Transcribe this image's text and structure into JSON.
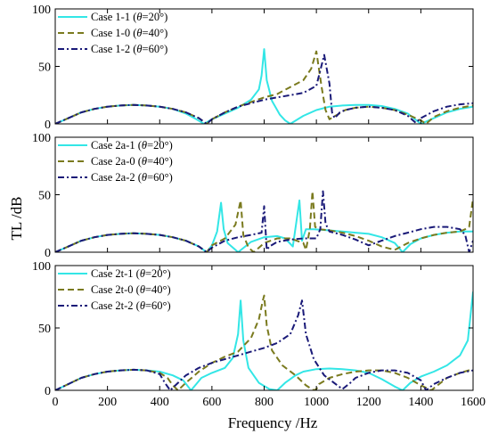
{
  "figure": {
    "ylabel": "TL /dB",
    "xlabel": "Frequency /Hz"
  },
  "colors": {
    "case_20": "#33E6E6",
    "case_40": "#7A7A1E",
    "case_60": "#1A1A78",
    "axis": "#000000"
  },
  "chart_data": [
    {
      "type": "line",
      "xlim": [
        0,
        1600
      ],
      "ylim": [
        0,
        100
      ],
      "x_ticks": [
        "0",
        "200",
        "400",
        "600",
        "800",
        "1000",
        "1200",
        "1400",
        "1600"
      ],
      "y_ticks": [
        "0",
        "50",
        "100"
      ],
      "legend_position": "top-left",
      "series": [
        {
          "name": "Case 1-1 (θ=20°)",
          "name_pre": "Case 1-1 (",
          "name_theta": "θ",
          "name_post": "=20°)",
          "style": "solid",
          "color": "#33E6E6",
          "x": [
            0,
            50,
            100,
            150,
            200,
            250,
            300,
            350,
            400,
            450,
            500,
            540,
            570,
            600,
            650,
            700,
            750,
            780,
            790,
            800,
            810,
            830,
            860,
            880,
            900,
            950,
            1000,
            1050,
            1100,
            1150,
            1200,
            1250,
            1300,
            1350,
            1400,
            1450,
            1500,
            1550,
            1600
          ],
          "y": [
            0,
            5,
            10,
            13,
            15,
            16,
            16.5,
            16,
            15,
            13,
            9,
            4,
            0,
            4,
            9,
            14,
            21,
            30,
            42,
            65,
            38,
            20,
            8,
            3,
            0,
            7,
            12,
            15,
            16,
            16.5,
            16.5,
            15.5,
            13,
            9,
            0,
            5,
            10,
            13,
            15
          ]
        },
        {
          "name": "Case 1-0 (θ=40°)",
          "name_pre": "Case 1-0 (",
          "name_theta": "θ",
          "name_post": "=40°)",
          "style": "dash",
          "color": "#7A7A1E",
          "x": [
            0,
            50,
            100,
            150,
            200,
            250,
            300,
            350,
            400,
            450,
            500,
            550,
            580,
            600,
            650,
            700,
            750,
            800,
            850,
            900,
            950,
            980,
            1000,
            1020,
            1035,
            1050,
            1080,
            1110,
            1150,
            1200,
            1250,
            1300,
            1350,
            1400,
            1420,
            1450,
            1500,
            1550,
            1600
          ],
          "y": [
            0,
            5,
            10,
            13,
            15,
            16,
            16.5,
            16,
            15,
            13,
            10,
            5,
            0,
            4,
            10,
            15,
            19,
            23,
            26,
            32,
            38,
            48,
            63,
            32,
            12,
            4,
            8,
            12,
            14,
            15,
            14,
            12,
            8,
            3,
            0,
            6,
            11,
            14,
            16
          ]
        },
        {
          "name": "Case 1-2 (θ=60°)",
          "name_pre": "Case 1-2 (",
          "name_theta": "θ",
          "name_post": "=60°)",
          "style": "dashdot",
          "color": "#1A1A78",
          "x": [
            0,
            50,
            100,
            150,
            200,
            250,
            300,
            350,
            400,
            450,
            500,
            550,
            580,
            600,
            650,
            700,
            750,
            800,
            850,
            900,
            950,
            1000,
            1030,
            1050,
            1060,
            1070,
            1090,
            1110,
            1150,
            1200,
            1250,
            1300,
            1350,
            1380,
            1400,
            1450,
            1500,
            1550,
            1600
          ],
          "y": [
            0,
            5,
            10,
            13,
            15,
            16,
            16.5,
            16,
            15,
            13,
            10,
            5,
            0,
            4,
            10,
            15,
            18,
            21,
            23,
            25,
            27,
            33,
            60,
            35,
            10,
            5,
            10,
            12,
            14,
            15,
            14,
            12,
            7,
            1,
            5,
            11,
            15,
            17,
            18
          ]
        }
      ]
    },
    {
      "type": "line",
      "xlim": [
        0,
        1600
      ],
      "ylim": [
        0,
        100
      ],
      "x_ticks": [
        "0",
        "200",
        "400",
        "600",
        "800",
        "1000",
        "1200",
        "1400",
        "1600"
      ],
      "y_ticks": [
        "0",
        "50",
        "100"
      ],
      "legend_position": "top-left",
      "series": [
        {
          "name": "Case 2a-1 (θ=20°)",
          "name_pre": "Case 2a-1 (",
          "name_theta": "θ",
          "name_post": "=20°)",
          "style": "solid",
          "color": "#33E6E6",
          "x": [
            0,
            50,
            100,
            150,
            200,
            250,
            300,
            350,
            400,
            450,
            500,
            550,
            580,
            600,
            620,
            635,
            645,
            660,
            690,
            700,
            750,
            800,
            850,
            880,
            910,
            935,
            945,
            960,
            990,
            1050,
            1100,
            1150,
            1200,
            1250,
            1300,
            1330,
            1360,
            1400,
            1450,
            1500,
            1550,
            1600
          ],
          "y": [
            0,
            5,
            10,
            13,
            15,
            16,
            16.5,
            16,
            15,
            13,
            10,
            5,
            0,
            6,
            18,
            43,
            20,
            8,
            2,
            0,
            9,
            13,
            14,
            12,
            5,
            45,
            10,
            20,
            20,
            19,
            18,
            17,
            16,
            13,
            8,
            0,
            7,
            12,
            15,
            17,
            18,
            18
          ]
        },
        {
          "name": "Case 2a-0 (θ=40°)",
          "name_pre": "Case 2a-0 (",
          "name_theta": "θ",
          "name_post": "=40°)",
          "style": "dash",
          "color": "#7A7A1E",
          "x": [
            0,
            50,
            100,
            150,
            200,
            250,
            300,
            350,
            400,
            450,
            500,
            550,
            580,
            600,
            650,
            690,
            710,
            720,
            740,
            760,
            800,
            850,
            900,
            950,
            960,
            975,
            985,
            995,
            1010,
            1050,
            1100,
            1150,
            1200,
            1250,
            1300,
            1350,
            1400,
            1450,
            1500,
            1550,
            1570,
            1585,
            1600
          ],
          "y": [
            0,
            5,
            10,
            13,
            15,
            16,
            16.5,
            16,
            15,
            13,
            10,
            5,
            0,
            6,
            12,
            24,
            45,
            15,
            4,
            0,
            8,
            12,
            12,
            8,
            2,
            20,
            53,
            22,
            20,
            19,
            17,
            14,
            10,
            5,
            2,
            8,
            12,
            15,
            17,
            18,
            20,
            22,
            47
          ]
        },
        {
          "name": "Case 2a-2 (θ=60°)",
          "name_pre": "Case 2a-2 (",
          "name_theta": "θ",
          "name_post": "=60°)",
          "style": "dashdot",
          "color": "#1A1A78",
          "x": [
            0,
            50,
            100,
            150,
            200,
            250,
            300,
            350,
            400,
            450,
            500,
            550,
            580,
            600,
            650,
            700,
            750,
            790,
            800,
            810,
            820,
            850,
            900,
            950,
            1000,
            1015,
            1025,
            1035,
            1050,
            1100,
            1150,
            1200,
            1250,
            1300,
            1350,
            1400,
            1450,
            1500,
            1550,
            1570,
            1585,
            1600
          ],
          "y": [
            0,
            5,
            10,
            13,
            15,
            16,
            16.5,
            16,
            15,
            13,
            10,
            5,
            0,
            4,
            10,
            13,
            15,
            17,
            40,
            2,
            5,
            9,
            11,
            12,
            12,
            20,
            53,
            25,
            18,
            15,
            11,
            6,
            10,
            14,
            17,
            20,
            22,
            22,
            20,
            15,
            0,
            10
          ]
        }
      ]
    },
    {
      "type": "line",
      "xlim": [
        0,
        1600
      ],
      "ylim": [
        0,
        100
      ],
      "x_ticks": [
        "0",
        "200",
        "400",
        "600",
        "800",
        "1000",
        "1200",
        "1400",
        "1600"
      ],
      "y_ticks": [
        "0",
        "50",
        "100"
      ],
      "x_axis_label": "Frequency /Hz",
      "legend_position": "top-left",
      "series": [
        {
          "name": "Case 2t-1 (θ=20°)",
          "name_pre": "Case 2t-1 (",
          "name_theta": "θ",
          "name_post": "=20°)",
          "style": "solid",
          "color": "#33E6E6",
          "x": [
            0,
            50,
            100,
            150,
            200,
            250,
            300,
            350,
            400,
            450,
            490,
            520,
            540,
            560,
            600,
            650,
            680,
            700,
            710,
            720,
            740,
            780,
            820,
            850,
            880,
            920,
            950,
            1000,
            1050,
            1100,
            1150,
            1200,
            1250,
            1300,
            1330,
            1360,
            1400,
            1450,
            1500,
            1550,
            1580,
            1600
          ],
          "y": [
            0,
            5,
            10,
            13,
            15,
            16,
            16.5,
            16,
            15,
            12,
            8,
            0,
            5,
            10,
            14,
            18,
            26,
            45,
            72,
            40,
            18,
            6,
            1,
            0,
            6,
            12,
            15,
            17,
            17.5,
            17,
            16,
            14,
            9,
            3,
            0,
            6,
            11,
            15,
            20,
            28,
            40,
            79
          ]
        },
        {
          "name": "Case 2t-0 (θ=40°)",
          "name_pre": "Case 2t-0 (",
          "name_theta": "θ",
          "name_post": "=40°)",
          "style": "dash",
          "color": "#7A7A1E",
          "x": [
            0,
            50,
            100,
            150,
            200,
            250,
            300,
            350,
            400,
            430,
            450,
            470,
            500,
            550,
            600,
            650,
            700,
            750,
            780,
            795,
            800,
            810,
            830,
            870,
            920,
            960,
            990,
            1000,
            1010,
            1050,
            1100,
            1150,
            1200,
            1250,
            1300,
            1350,
            1400,
            1440,
            1470,
            1500,
            1550,
            1600
          ],
          "y": [
            0,
            5,
            10,
            13,
            15,
            16,
            16.5,
            16,
            14,
            10,
            4,
            0,
            6,
            15,
            22,
            27,
            31,
            42,
            57,
            72,
            76,
            52,
            32,
            20,
            12,
            4,
            0,
            1,
            5,
            10,
            13,
            15,
            16,
            16,
            14,
            10,
            4,
            0,
            5,
            10,
            14,
            17
          ]
        },
        {
          "name": "Case 2t-2 (θ=60°)",
          "name_pre": "Case 2t-2 (",
          "name_theta": "θ",
          "name_post": "=60°)",
          "style": "dashdot",
          "color": "#1A1A78",
          "x": [
            0,
            50,
            100,
            150,
            200,
            250,
            300,
            350,
            400,
            420,
            440,
            470,
            500,
            550,
            600,
            650,
            700,
            750,
            800,
            850,
            900,
            930,
            945,
            960,
            990,
            1030,
            1080,
            1100,
            1130,
            1150,
            1200,
            1250,
            1300,
            1350,
            1400,
            1420,
            1450,
            1500,
            1550,
            1600
          ],
          "y": [
            0,
            5,
            10,
            13,
            15,
            16,
            16.5,
            16,
            13,
            6,
            0,
            6,
            12,
            18,
            22,
            25,
            28,
            31,
            34,
            38,
            45,
            60,
            72,
            45,
            25,
            12,
            4,
            1,
            6,
            10,
            14,
            16,
            16,
            14,
            8,
            0,
            5,
            10,
            14,
            16
          ]
        }
      ]
    }
  ]
}
